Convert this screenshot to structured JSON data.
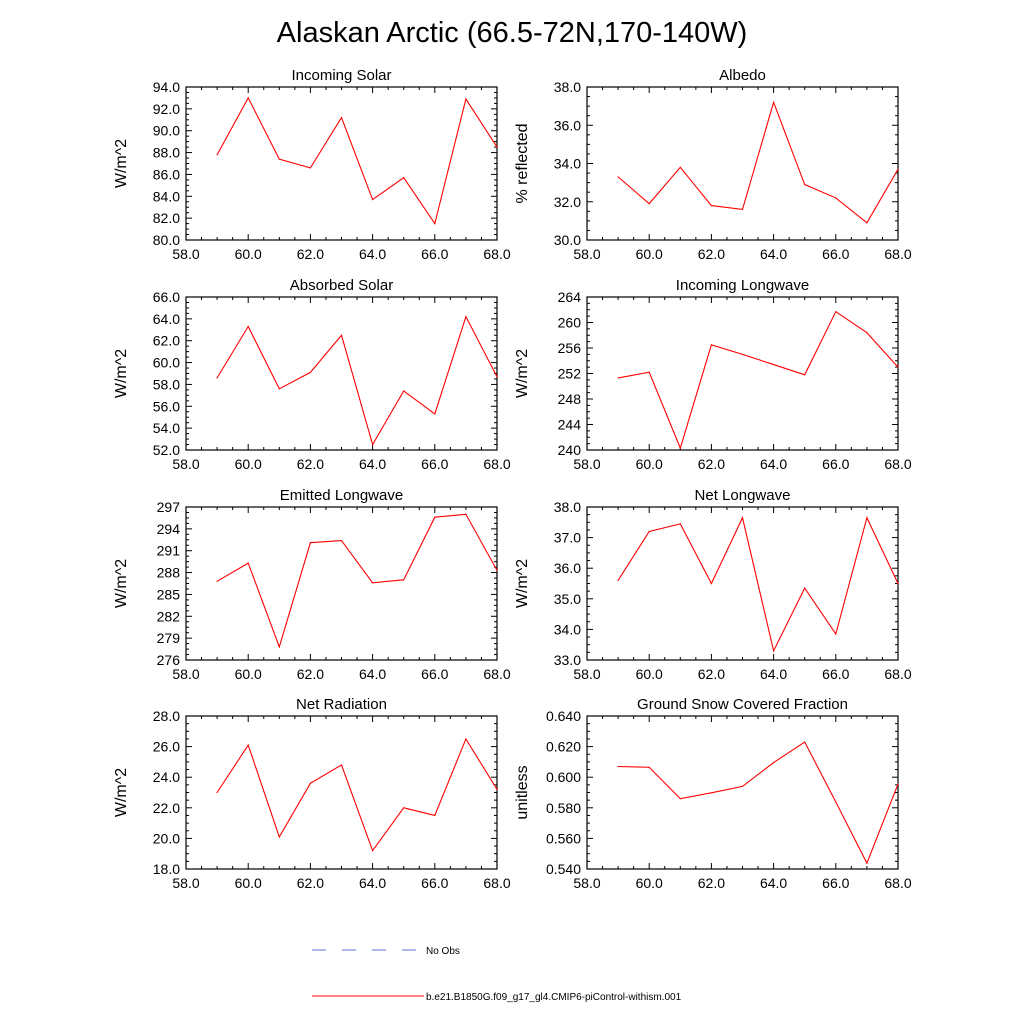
{
  "figure": {
    "title": "Alaskan Arctic (66.5-72N,170-140W)",
    "legend": [
      {
        "label": "No Obs",
        "color": "#5b6fd6",
        "style": "dashed"
      },
      {
        "label": "b.e21.B1850G.f09_g17_gl4.CMIP6-piControl-withism.001",
        "color": "#ff0000",
        "style": "solid"
      }
    ]
  },
  "chart_data": [
    {
      "type": "line",
      "title": "Incoming Solar",
      "xlabel": "",
      "ylabel": "W/m^2",
      "xlim": [
        58,
        68
      ],
      "ylim": [
        80,
        94
      ],
      "xticks": [
        "58.0",
        "60.0",
        "62.0",
        "64.0",
        "66.0",
        "68.0"
      ],
      "yticks": [
        "80.0",
        "82.0",
        "84.0",
        "86.0",
        "88.0",
        "90.0",
        "92.0",
        "94.0"
      ],
      "x": [
        59,
        60,
        61,
        62,
        63,
        64,
        65,
        66,
        67,
        68
      ],
      "series": [
        {
          "name": "b.e21.B1850G.f09_g17_gl4.CMIP6-piControl-withism.001",
          "color": "#ff0000",
          "values": [
            87.8,
            93.0,
            87.4,
            86.6,
            91.2,
            83.7,
            85.7,
            81.5,
            92.9,
            88.5
          ]
        }
      ]
    },
    {
      "type": "line",
      "title": "Albedo",
      "xlabel": "",
      "ylabel": "% reflected",
      "xlim": [
        58,
        68
      ],
      "ylim": [
        30,
        38
      ],
      "xticks": [
        "58.0",
        "60.0",
        "62.0",
        "64.0",
        "66.0",
        "68.0"
      ],
      "yticks": [
        "30.0",
        "32.0",
        "34.0",
        "36.0",
        "38.0"
      ],
      "x": [
        59,
        60,
        61,
        62,
        63,
        64,
        65,
        66,
        67,
        68
      ],
      "series": [
        {
          "name": "b.e21.B1850G.f09_g17_gl4.CMIP6-piControl-withism.001",
          "color": "#ff0000",
          "values": [
            33.3,
            31.9,
            33.8,
            31.8,
            31.6,
            37.2,
            32.9,
            32.2,
            30.9,
            33.7
          ]
        }
      ]
    },
    {
      "type": "line",
      "title": "Absorbed Solar",
      "xlabel": "",
      "ylabel": "W/m^2",
      "xlim": [
        58,
        68
      ],
      "ylim": [
        52,
        66
      ],
      "xticks": [
        "58.0",
        "60.0",
        "62.0",
        "64.0",
        "66.0",
        "68.0"
      ],
      "yticks": [
        "52.0",
        "54.0",
        "56.0",
        "58.0",
        "60.0",
        "62.0",
        "64.0",
        "66.0"
      ],
      "x": [
        59,
        60,
        61,
        62,
        63,
        64,
        65,
        66,
        67,
        68
      ],
      "series": [
        {
          "name": "b.e21.B1850G.f09_g17_gl4.CMIP6-piControl-withism.001",
          "color": "#ff0000",
          "values": [
            58.6,
            63.3,
            57.6,
            59.1,
            62.5,
            52.5,
            57.4,
            55.3,
            64.2,
            58.7
          ]
        }
      ]
    },
    {
      "type": "line",
      "title": "Incoming Longwave",
      "xlabel": "",
      "ylabel": "W/m^2",
      "xlim": [
        58,
        68
      ],
      "ylim": [
        240,
        264
      ],
      "xticks": [
        "58.0",
        "60.0",
        "62.0",
        "64.0",
        "66.0",
        "68.0"
      ],
      "yticks": [
        "240",
        "244",
        "248",
        "252",
        "256",
        "260",
        "264"
      ],
      "x": [
        59,
        60,
        61,
        62,
        63,
        64,
        65,
        66,
        67,
        68
      ],
      "series": [
        {
          "name": "b.e21.B1850G.f09_g17_gl4.CMIP6-piControl-withism.001",
          "color": "#ff0000",
          "values": [
            251.3,
            252.2,
            240.3,
            256.5,
            255.0,
            253.4,
            251.8,
            261.7,
            258.4,
            253.0
          ]
        }
      ]
    },
    {
      "type": "line",
      "title": "Emitted Longwave",
      "xlabel": "",
      "ylabel": "W/m^2",
      "xlim": [
        58,
        68
      ],
      "ylim": [
        276,
        297
      ],
      "xticks": [
        "58.0",
        "60.0",
        "62.0",
        "64.0",
        "66.0",
        "68.0"
      ],
      "yticks": [
        "276",
        "279",
        "282",
        "285",
        "288",
        "291",
        "294",
        "297"
      ],
      "x": [
        59,
        60,
        61,
        62,
        63,
        64,
        65,
        66,
        67,
        68
      ],
      "series": [
        {
          "name": "b.e21.B1850G.f09_g17_gl4.CMIP6-piControl-withism.001",
          "color": "#ff0000",
          "values": [
            286.8,
            289.3,
            277.8,
            292.1,
            292.4,
            286.6,
            287.0,
            295.6,
            296.0,
            288.3
          ]
        }
      ]
    },
    {
      "type": "line",
      "title": "Net Longwave",
      "xlabel": "",
      "ylabel": "W/m^2",
      "xlim": [
        58,
        68
      ],
      "ylim": [
        33,
        38
      ],
      "xticks": [
        "58.0",
        "60.0",
        "62.0",
        "64.0",
        "66.0",
        "68.0"
      ],
      "yticks": [
        "33.0",
        "34.0",
        "35.0",
        "36.0",
        "37.0",
        "38.0"
      ],
      "x": [
        59,
        60,
        61,
        62,
        63,
        64,
        65,
        66,
        67,
        68
      ],
      "series": [
        {
          "name": "b.e21.B1850G.f09_g17_gl4.CMIP6-piControl-withism.001",
          "color": "#ff0000",
          "values": [
            35.6,
            37.2,
            37.45,
            35.5,
            37.65,
            33.3,
            35.35,
            33.85,
            37.65,
            35.5
          ]
        }
      ]
    },
    {
      "type": "line",
      "title": "Net Radiation",
      "xlabel": "",
      "ylabel": "W/m^2",
      "xlim": [
        58,
        68
      ],
      "ylim": [
        18,
        28
      ],
      "xticks": [
        "58.0",
        "60.0",
        "62.0",
        "64.0",
        "66.0",
        "68.0"
      ],
      "yticks": [
        "18.0",
        "20.0",
        "22.0",
        "24.0",
        "26.0",
        "28.0"
      ],
      "x": [
        59,
        60,
        61,
        62,
        63,
        64,
        65,
        66,
        67,
        68
      ],
      "series": [
        {
          "name": "b.e21.B1850G.f09_g17_gl4.CMIP6-piControl-withism.001",
          "color": "#ff0000",
          "values": [
            23.0,
            26.1,
            20.1,
            23.6,
            24.8,
            19.2,
            22.0,
            21.5,
            26.5,
            23.2
          ]
        }
      ]
    },
    {
      "type": "line",
      "title": "Ground Snow Covered Fraction",
      "xlabel": "",
      "ylabel": "unitless",
      "xlim": [
        58,
        68
      ],
      "ylim": [
        0.54,
        0.64
      ],
      "xticks": [
        "58.0",
        "60.0",
        "62.0",
        "64.0",
        "66.0",
        "68.0"
      ],
      "yticks": [
        "0.540",
        "0.560",
        "0.580",
        "0.600",
        "0.620",
        "0.640"
      ],
      "x": [
        59,
        60,
        61,
        62,
        63,
        64,
        65,
        66,
        67,
        68
      ],
      "series": [
        {
          "name": "b.e21.B1850G.f09_g17_gl4.CMIP6-piControl-withism.001",
          "color": "#ff0000",
          "values": [
            0.607,
            0.6065,
            0.586,
            0.5898,
            0.594,
            0.6096,
            0.623,
            0.5838,
            0.5438,
            0.5955
          ]
        }
      ]
    }
  ]
}
